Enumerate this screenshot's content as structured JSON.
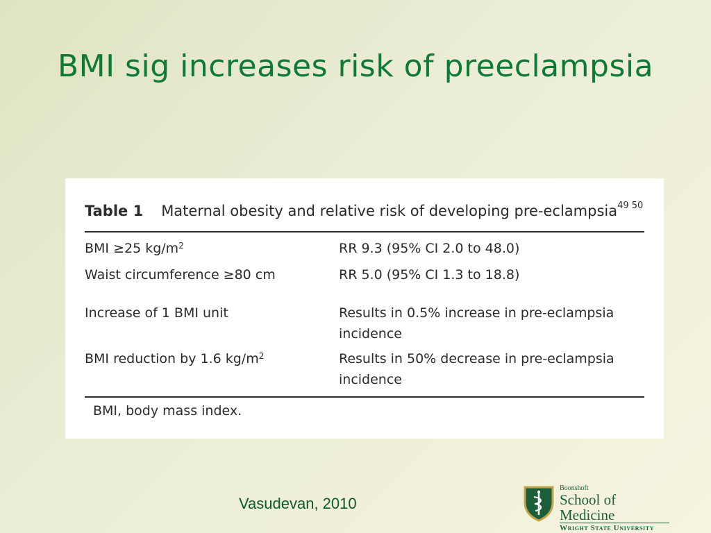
{
  "slide": {
    "title": "BMI sig increases risk of preeclampsia",
    "citation": "Vasudevan, 2010"
  },
  "table": {
    "number": "Table 1",
    "caption": "Maternal obesity and relative risk of developing pre-eclampsia",
    "caption_refs": "49 50",
    "rows": [
      {
        "label": "BMI ≥25 kg/m",
        "label_sup": "2",
        "value": "RR 9.3 (95% CI 2.0 to 48.0)"
      },
      {
        "label": "Waist circumference ≥80 cm",
        "label_sup": "",
        "value": "RR 5.0 (95% CI 1.3 to 18.8)"
      },
      {
        "label": "Increase of 1 BMI unit",
        "label_sup": "",
        "value": "Results in 0.5% increase in pre-eclampsia",
        "value_line2": "incidence"
      },
      {
        "label": "BMI reduction by 1.6 kg/m",
        "label_sup": "2",
        "value": "Results in 50% decrease in pre-eclampsia",
        "value_line2": "incidence"
      }
    ],
    "footnote": "BMI, body mass index."
  },
  "logo": {
    "line1": "Boonshoft",
    "line2": "School of Medicine",
    "line3": "Wright State University",
    "accent": "#1c5e3a",
    "gold": "#c8a24a"
  }
}
